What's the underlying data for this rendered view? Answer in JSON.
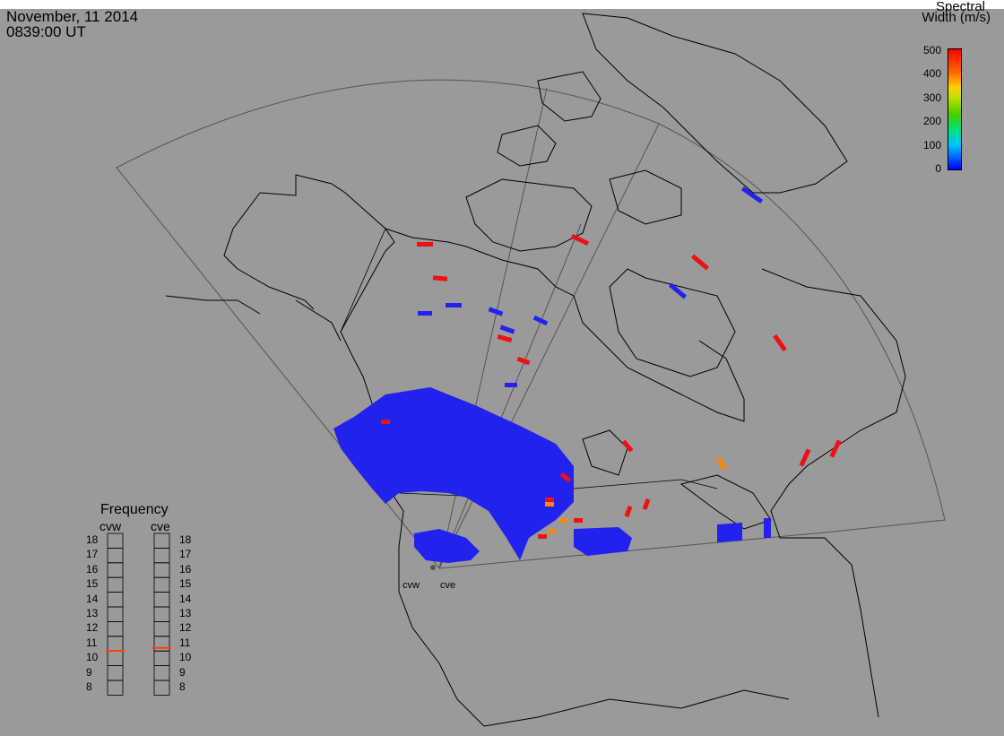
{
  "header": {
    "date": "November, 11 2014",
    "time": "0839:00 UT"
  },
  "colorbar": {
    "title_line1": "Spectral",
    "title_line2": "Width (m/s)",
    "ticks": [
      "500",
      "400",
      "300",
      "200",
      "100",
      "0"
    ],
    "range": [
      0,
      500
    ],
    "colors": [
      "#0000ff",
      "#00c0ff",
      "#00e080",
      "#40d000",
      "#c0e000",
      "#ffd000",
      "#ff6000",
      "#ff0000"
    ]
  },
  "frequency_panel": {
    "title": "Frequency",
    "radars": [
      "cvw",
      "cve"
    ],
    "ticks": [
      "18",
      "17",
      "16",
      "15",
      "14",
      "13",
      "12",
      "11",
      "10",
      "9",
      "8"
    ],
    "unit_range": [
      8,
      18
    ],
    "cvw_frequency": 10.5,
    "cve_frequency": 10.7,
    "marker_color": "#ff4000"
  },
  "radar_sites": {
    "labels": [
      "cvw",
      "cve"
    ]
  },
  "map": {
    "background": "#9a9a9a",
    "coast_color": "#000000",
    "fov_color": "#555555",
    "low_width_color": "#2222ee",
    "high_width_color": "#ee1111",
    "mid_width_color": "#ff8800"
  }
}
